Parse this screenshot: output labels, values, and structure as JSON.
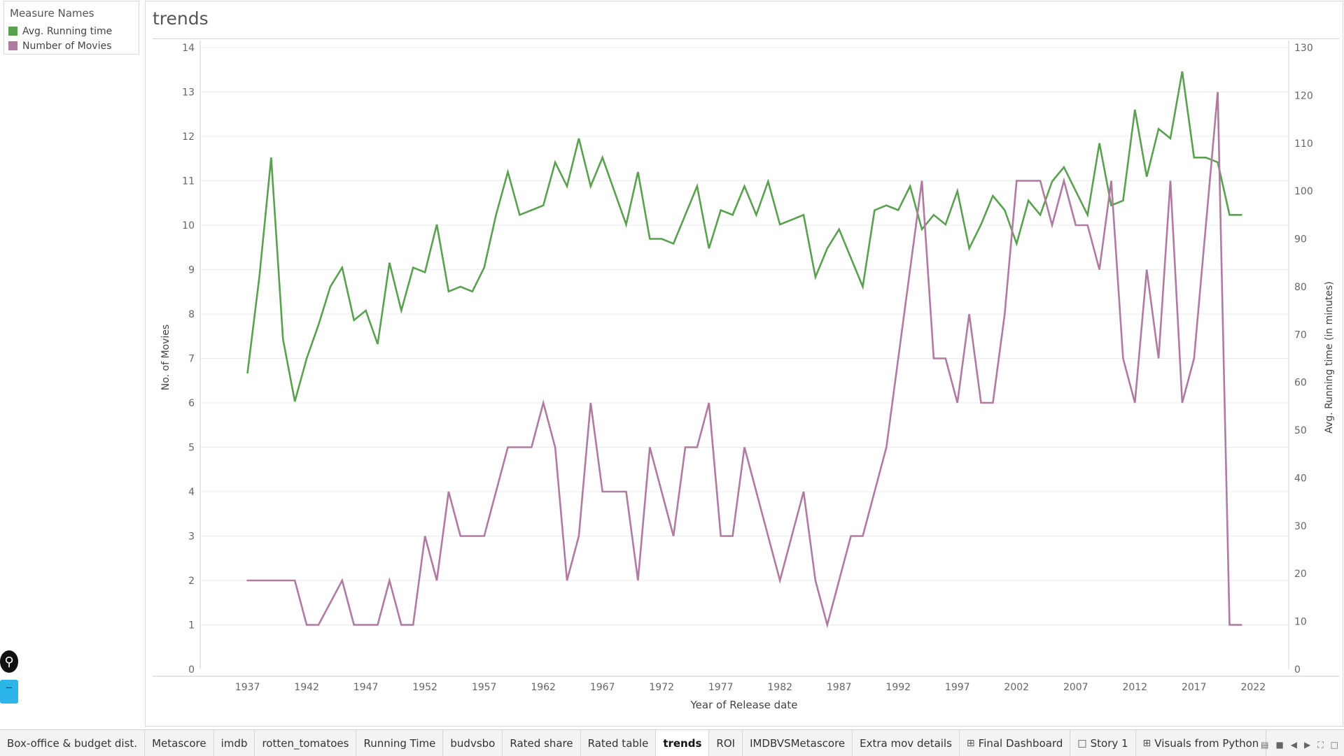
{
  "legend": {
    "title": "Measure Names",
    "items": [
      {
        "label": "Avg. Running time",
        "color": "#59a14f"
      },
      {
        "label": "Number of Movies",
        "color": "#b07aa1"
      }
    ]
  },
  "tabs": [
    {
      "label": "Box-office & budget dist.",
      "icon": ""
    },
    {
      "label": "Metascore",
      "icon": ""
    },
    {
      "label": "imdb",
      "icon": ""
    },
    {
      "label": "rotten_tomatoes",
      "icon": ""
    },
    {
      "label": "Running Time",
      "icon": ""
    },
    {
      "label": "budvsbo",
      "icon": ""
    },
    {
      "label": "Rated share",
      "icon": ""
    },
    {
      "label": "Rated table",
      "icon": ""
    },
    {
      "label": "trends",
      "icon": "",
      "active": true
    },
    {
      "label": "ROI",
      "icon": ""
    },
    {
      "label": "IMDBVSMetascore",
      "icon": ""
    },
    {
      "label": "Extra mov details",
      "icon": ""
    },
    {
      "label": "Final Dashboard",
      "icon": "dashboard-grid-icon"
    },
    {
      "label": "Story 1",
      "icon": "story-book-icon"
    },
    {
      "label": "Visuals from Python",
      "icon": "dashboard-grid-icon"
    }
  ],
  "chart_data": {
    "type": "line",
    "title": "trends",
    "xlabel": "Year of Release date",
    "ylabel": "No. of Movies",
    "y2label": "Avg. Running time (in minutes)",
    "xlim": [
      1933,
      2025
    ],
    "ylim": [
      0,
      14
    ],
    "y2lim": [
      0,
      130
    ],
    "xticks": [
      1937,
      1942,
      1947,
      1952,
      1957,
      1962,
      1967,
      1972,
      1977,
      1982,
      1987,
      1992,
      1997,
      2002,
      2007,
      2012,
      2017,
      2022
    ],
    "yticks": [
      0,
      1,
      2,
      3,
      4,
      5,
      6,
      7,
      8,
      9,
      10,
      11,
      12,
      13,
      14
    ],
    "y2ticks": [
      0,
      10,
      20,
      30,
      40,
      50,
      60,
      70,
      80,
      90,
      100,
      110,
      120,
      130
    ],
    "grid": "horizontal",
    "series": [
      {
        "name": "Avg. Running time",
        "axis": "right",
        "color": "#59a14f",
        "x": [
          1937,
          1938,
          1939,
          1940,
          1941,
          1942,
          1943,
          1944,
          1945,
          1946,
          1947,
          1948,
          1949,
          1950,
          1951,
          1952,
          1953,
          1954,
          1955,
          1956,
          1957,
          1958,
          1959,
          1960,
          1961,
          1962,
          1963,
          1964,
          1965,
          1966,
          1967,
          1968,
          1969,
          1970,
          1971,
          1972,
          1973,
          1974,
          1975,
          1976,
          1977,
          1978,
          1979,
          1980,
          1981,
          1982,
          1983,
          1984,
          1985,
          1986,
          1987,
          1988,
          1989,
          1990,
          1991,
          1992,
          1993,
          1994,
          1995,
          1996,
          1997,
          1998,
          1999,
          2000,
          2001,
          2002,
          2003,
          2004,
          2005,
          2006,
          2007,
          2008,
          2009,
          2010,
          2011,
          2012,
          2013,
          2014,
          2015,
          2016,
          2017,
          2018,
          2019,
          2020,
          2021
        ],
        "values": [
          62,
          82,
          107,
          69,
          56,
          65,
          72,
          80,
          84,
          73,
          75,
          68,
          85,
          75,
          84,
          83,
          93,
          79,
          80,
          79,
          84,
          95,
          104,
          95,
          96,
          97,
          106,
          101,
          111,
          101,
          107,
          100,
          93,
          104,
          90,
          90,
          89,
          95,
          101,
          88,
          96,
          95,
          101,
          95,
          102,
          93,
          94,
          95,
          82,
          88,
          92,
          86,
          80,
          96,
          97,
          96,
          101,
          92,
          95,
          93,
          100,
          88,
          93,
          99,
          96,
          89,
          98,
          95,
          102,
          105,
          100,
          95,
          110,
          97,
          98,
          117,
          103,
          113,
          111,
          125,
          107,
          107,
          106,
          95,
          95
        ]
      },
      {
        "name": "Number of Movies",
        "axis": "left",
        "color": "#b07aa1",
        "x": [
          1937,
          1938,
          1939,
          1940,
          1941,
          1942,
          1943,
          1944,
          1945,
          1946,
          1947,
          1948,
          1949,
          1950,
          1951,
          1952,
          1953,
          1954,
          1955,
          1956,
          1957,
          1958,
          1959,
          1960,
          1961,
          1962,
          1963,
          1964,
          1965,
          1966,
          1967,
          1968,
          1969,
          1970,
          1971,
          1972,
          1973,
          1974,
          1975,
          1976,
          1977,
          1978,
          1979,
          1980,
          1981,
          1982,
          1983,
          1984,
          1985,
          1986,
          1987,
          1988,
          1989,
          1990,
          1991,
          1992,
          1993,
          1994,
          1995,
          1996,
          1997,
          1998,
          1999,
          2000,
          2001,
          2002,
          2003,
          2004,
          2005,
          2006,
          2007,
          2008,
          2009,
          2010,
          2011,
          2012,
          2013,
          2014,
          2015,
          2016,
          2017,
          2018,
          2019,
          2020,
          2021
        ],
        "values": [
          2,
          2,
          2,
          2,
          2,
          1,
          1,
          1.5,
          2,
          1,
          1,
          1,
          2,
          1,
          1,
          3,
          2,
          4,
          3,
          3,
          3,
          4,
          5,
          5,
          5,
          6,
          5,
          2,
          3,
          6,
          4,
          4,
          4,
          2,
          5,
          4,
          3,
          5,
          5,
          6,
          3,
          3,
          5,
          4,
          3,
          2,
          3,
          4,
          2,
          1,
          2,
          3,
          3,
          4,
          5,
          7,
          9,
          11,
          7,
          7,
          6,
          8,
          6,
          6,
          8,
          11,
          11,
          11,
          10,
          11,
          10,
          10,
          9,
          11,
          7,
          6,
          9,
          7,
          11,
          6,
          7,
          10,
          13,
          1,
          1
        ]
      }
    ]
  }
}
